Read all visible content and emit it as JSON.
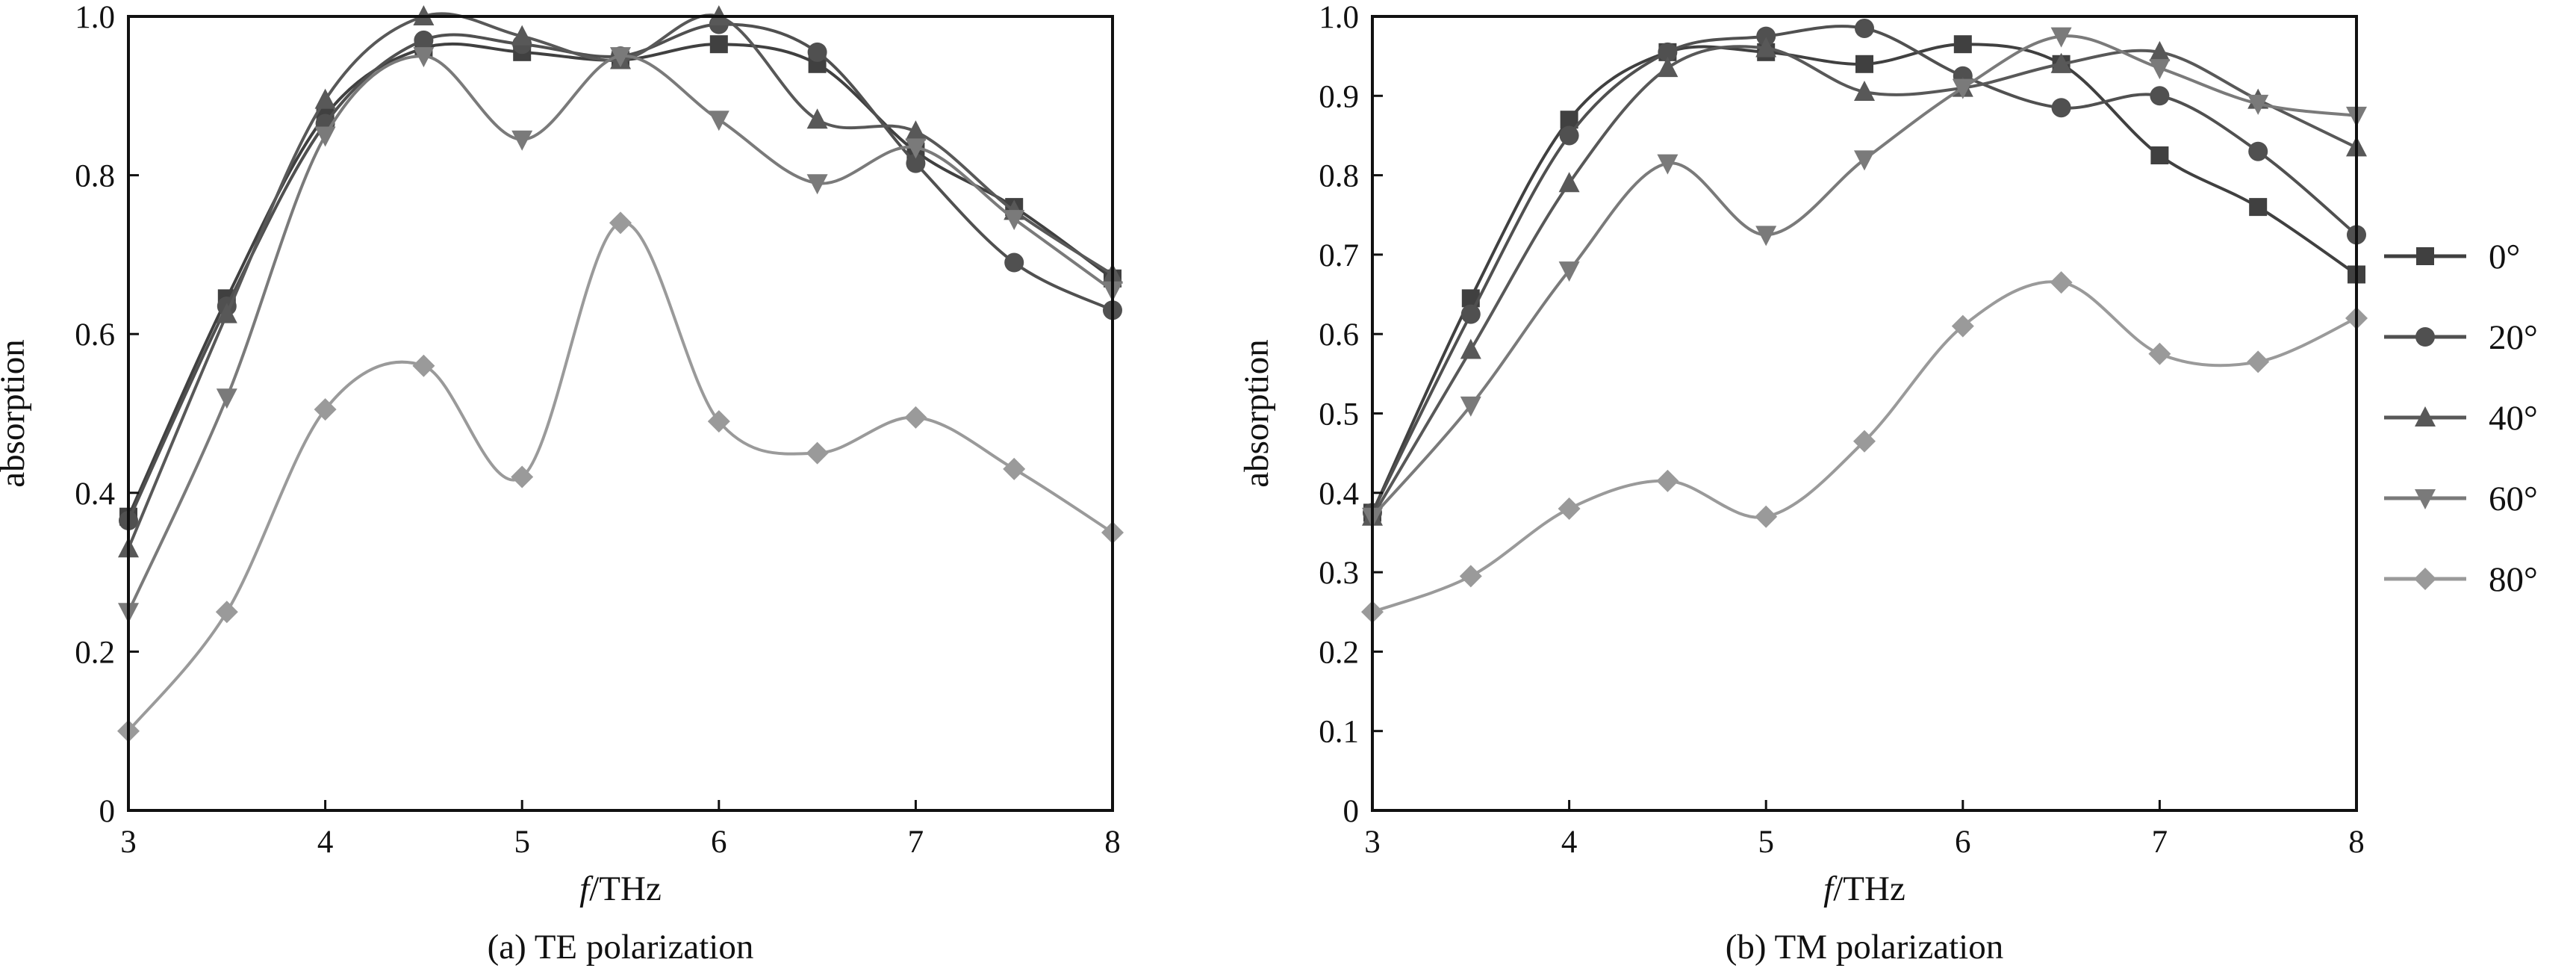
{
  "legend": {
    "entries": [
      "0°",
      "20°",
      "40°",
      "60°",
      "80°"
    ],
    "markers": [
      "square",
      "circle",
      "triangle-up",
      "triangle-down",
      "diamond"
    ],
    "colors": [
      "#404040",
      "#505050",
      "#585858",
      "#7a7a7a",
      "#9a9a9a"
    ],
    "placement": "right"
  },
  "chart_data": [
    {
      "type": "line",
      "caption": "(a) TE polarization",
      "xlabel_italic": "f",
      "xlabel_rest": "/THz",
      "ylabel": "absorption",
      "xlim": [
        3,
        8
      ],
      "ylim": [
        0,
        1.0
      ],
      "xticks": [
        "3",
        "4",
        "5",
        "6",
        "7",
        "8"
      ],
      "yticks": [
        "0",
        "0.2",
        "0.4",
        "0.6",
        "0.8",
        "1.0"
      ],
      "x": [
        3,
        3.5,
        4,
        4.5,
        5,
        5.5,
        6,
        6.5,
        7,
        7.5,
        8
      ],
      "series": [
        {
          "name": "0°",
          "values": [
            0.37,
            0.645,
            0.875,
            0.96,
            0.955,
            0.945,
            0.965,
            0.94,
            0.83,
            0.76,
            0.67
          ]
        },
        {
          "name": "20°",
          "values": [
            0.365,
            0.635,
            0.865,
            0.97,
            0.965,
            0.95,
            0.99,
            0.955,
            0.815,
            0.69,
            0.63
          ]
        },
        {
          "name": "40°",
          "values": [
            0.33,
            0.625,
            0.895,
            1.0,
            0.975,
            0.945,
            1.0,
            0.87,
            0.855,
            0.755,
            0.675
          ]
        },
        {
          "name": "60°",
          "values": [
            0.25,
            0.52,
            0.85,
            0.95,
            0.845,
            0.95,
            0.87,
            0.79,
            0.835,
            0.745,
            0.655
          ]
        },
        {
          "name": "80°",
          "values": [
            0.1,
            0.25,
            0.505,
            0.56,
            0.42,
            0.74,
            0.49,
            0.45,
            0.495,
            0.43,
            0.35
          ]
        }
      ]
    },
    {
      "type": "line",
      "caption": "(b) TM polarization",
      "xlabel_italic": "f",
      "xlabel_rest": "/THz",
      "ylabel": "absorption",
      "xlim": [
        3,
        8
      ],
      "ylim": [
        0,
        1.0
      ],
      "xticks": [
        "3",
        "4",
        "5",
        "6",
        "7",
        "8"
      ],
      "yticks": [
        "0",
        "0.1",
        "0.2",
        "0.3",
        "0.4",
        "0.5",
        "0.6",
        "0.7",
        "0.8",
        "0.9",
        "1.0"
      ],
      "x": [
        3,
        3.5,
        4,
        4.5,
        5,
        5.5,
        6,
        6.5,
        7,
        7.5,
        8
      ],
      "series": [
        {
          "name": "0°",
          "values": [
            0.375,
            0.645,
            0.87,
            0.955,
            0.955,
            0.94,
            0.965,
            0.94,
            0.825,
            0.76,
            0.675
          ]
        },
        {
          "name": "20°",
          "values": [
            0.375,
            0.625,
            0.85,
            0.955,
            0.975,
            0.985,
            0.925,
            0.885,
            0.9,
            0.83,
            0.725
          ]
        },
        {
          "name": "40°",
          "values": [
            0.37,
            0.58,
            0.79,
            0.935,
            0.96,
            0.905,
            0.91,
            0.94,
            0.955,
            0.895,
            0.835
          ]
        },
        {
          "name": "60°",
          "values": [
            0.37,
            0.51,
            0.68,
            0.815,
            0.725,
            0.82,
            0.91,
            0.975,
            0.935,
            0.89,
            0.875
          ]
        },
        {
          "name": "80°",
          "values": [
            0.25,
            0.295,
            0.38,
            0.415,
            0.37,
            0.465,
            0.61,
            0.665,
            0.575,
            0.565,
            0.62
          ]
        }
      ]
    }
  ]
}
